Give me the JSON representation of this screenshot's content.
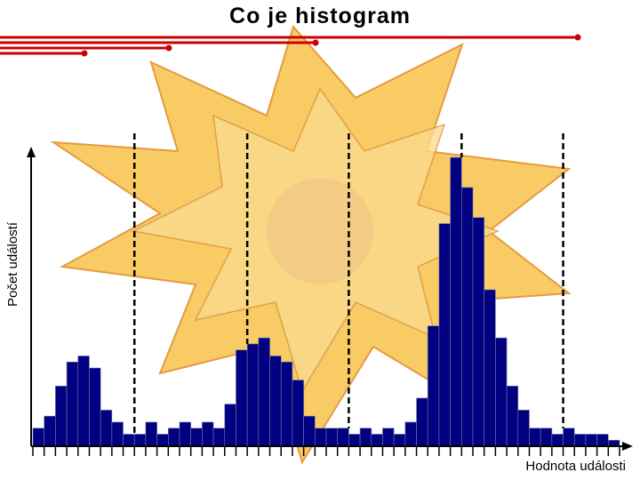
{
  "slide": {
    "title": "Co je histogram"
  },
  "colors": {
    "bar_fill": "#000080",
    "bar_stroke": "#7a7aa8",
    "accent_line": "#cc0000",
    "background_art": "#f5c040"
  },
  "chart_data": {
    "type": "bar",
    "title": "Co je histogram",
    "xlabel": "Hodnota události",
    "ylabel": "Počet událostí",
    "values": [
      1.5,
      2.5,
      5.0,
      7.0,
      7.5,
      6.5,
      3.0,
      2.0,
      1.0,
      1.0,
      2.0,
      1.0,
      1.5,
      2.0,
      1.5,
      2.0,
      1.5,
      3.5,
      8.0,
      8.5,
      9.0,
      7.5,
      7.0,
      5.5,
      2.5,
      1.5,
      1.5,
      1.5,
      1.0,
      1.5,
      1.0,
      1.5,
      1.0,
      2.0,
      4.0,
      10.0,
      18.5,
      24.0,
      21.5,
      19.0,
      13.0,
      9.0,
      5.0,
      3.0,
      1.5,
      1.5,
      1.0,
      1.5,
      1.0,
      1.0,
      1.0,
      0.5
    ],
    "ylim": [
      0,
      26
    ],
    "dividers_after_bin": [
      9,
      19,
      28,
      38,
      47,
      57
    ],
    "grid": false,
    "legend": "none"
  }
}
